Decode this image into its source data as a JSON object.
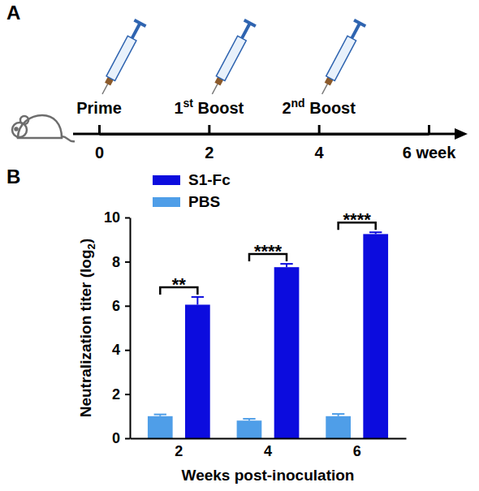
{
  "timeline": {
    "panel": "A",
    "events": [
      {
        "week": 0,
        "label": "Prime"
      },
      {
        "week": 2,
        "label": "1st Boost"
      },
      {
        "week": 4,
        "label": "2nd Boost"
      }
    ],
    "ticks": [
      0,
      2,
      4,
      {
        "value": 6,
        "label": "6 week"
      }
    ]
  },
  "chart_data": {
    "panel": "B",
    "type": "bar",
    "categories": [
      "2",
      "4",
      "6"
    ],
    "x_label": "Weeks post-inoculation",
    "y_label": "Neutralization titer (log2)",
    "series": [
      {
        "name": "S1-Fc",
        "color": "#0c0cde",
        "values": [
          6.05,
          7.75,
          9.25
        ],
        "errors": [
          0.35,
          0.15,
          0.08
        ]
      },
      {
        "name": "PBS",
        "color": "#4f9ee8",
        "values": [
          1.0,
          0.8,
          1.0
        ],
        "errors": [
          0.08,
          0.08,
          0.1
        ]
      }
    ],
    "annotations": [
      "**",
      "****",
      "****"
    ],
    "ylim": [
      0,
      10
    ],
    "yticks": [
      0,
      2,
      4,
      6,
      8,
      10
    ],
    "legend": "top-left"
  }
}
